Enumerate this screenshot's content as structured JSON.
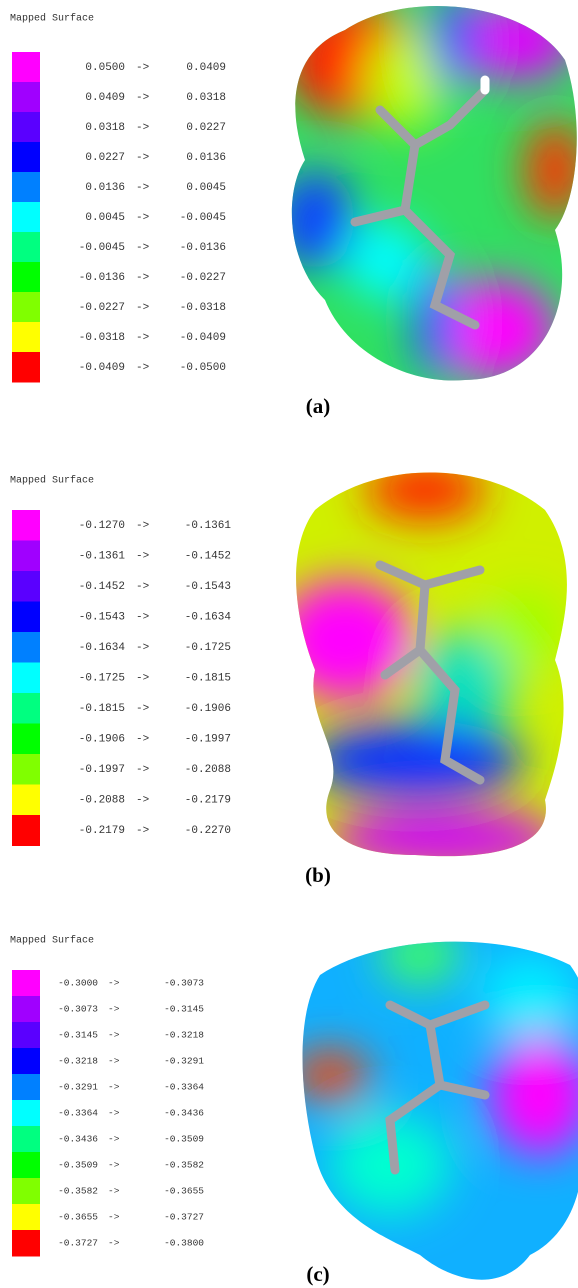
{
  "swatch_colors": [
    "#ff00ff",
    "#a000ff",
    "#5a00ff",
    "#0000ff",
    "#0080ff",
    "#00ffff",
    "#00ff80",
    "#00ff00",
    "#80ff00",
    "#ffff00",
    "#ff0000"
  ],
  "panels": [
    {
      "title": "Mapped Surface",
      "caption": "(a)",
      "rows": [
        {
          "from": "0.0500",
          "arrow": "->",
          "to": "0.0409"
        },
        {
          "from": "0.0409",
          "arrow": "->",
          "to": "0.0318"
        },
        {
          "from": "0.0318",
          "arrow": "->",
          "to": "0.0227"
        },
        {
          "from": "0.0227",
          "arrow": "->",
          "to": "0.0136"
        },
        {
          "from": "0.0136",
          "arrow": "->",
          "to": "0.0045"
        },
        {
          "from": "0.0045",
          "arrow": "->",
          "to": "-0.0045"
        },
        {
          "from": "-0.0045",
          "arrow": "->",
          "to": "-0.0136"
        },
        {
          "from": "-0.0136",
          "arrow": "->",
          "to": "-0.0227"
        },
        {
          "from": "-0.0227",
          "arrow": "->",
          "to": "-0.0318"
        },
        {
          "from": "-0.0318",
          "arrow": "->",
          "to": "-0.0409"
        },
        {
          "from": "-0.0409",
          "arrow": "->",
          "to": "-0.0500"
        }
      ]
    },
    {
      "title": "Mapped Surface",
      "caption": "(b)",
      "rows": [
        {
          "from": "-0.1270",
          "arrow": "->",
          "to": "-0.1361"
        },
        {
          "from": "-0.1361",
          "arrow": "->",
          "to": "-0.1452"
        },
        {
          "from": "-0.1452",
          "arrow": "->",
          "to": "-0.1543"
        },
        {
          "from": "-0.1543",
          "arrow": "->",
          "to": "-0.1634"
        },
        {
          "from": "-0.1634",
          "arrow": "->",
          "to": "-0.1725"
        },
        {
          "from": "-0.1725",
          "arrow": "->",
          "to": "-0.1815"
        },
        {
          "from": "-0.1815",
          "arrow": "->",
          "to": "-0.1906"
        },
        {
          "from": "-0.1906",
          "arrow": "->",
          "to": "-0.1997"
        },
        {
          "from": "-0.1997",
          "arrow": "->",
          "to": "-0.2088"
        },
        {
          "from": "-0.2088",
          "arrow": "->",
          "to": "-0.2179"
        },
        {
          "from": "-0.2179",
          "arrow": "->",
          "to": "-0.2270"
        }
      ]
    },
    {
      "title": "Mapped Surface",
      "caption": "(c)",
      "rows": [
        {
          "from": "-0.3000",
          "arrow": "->",
          "to": "-0.3073"
        },
        {
          "from": "-0.3073",
          "arrow": "->",
          "to": "-0.3145"
        },
        {
          "from": "-0.3145",
          "arrow": "->",
          "to": "-0.3218"
        },
        {
          "from": "-0.3218",
          "arrow": "->",
          "to": "-0.3291"
        },
        {
          "from": "-0.3291",
          "arrow": "->",
          "to": "-0.3364"
        },
        {
          "from": "-0.3364",
          "arrow": "->",
          "to": "-0.3436"
        },
        {
          "from": "-0.3436",
          "arrow": "->",
          "to": "-0.3509"
        },
        {
          "from": "-0.3509",
          "arrow": "->",
          "to": "-0.3582"
        },
        {
          "from": "-0.3582",
          "arrow": "->",
          "to": "-0.3655"
        },
        {
          "from": "-0.3655",
          "arrow": "->",
          "to": "-0.3727"
        },
        {
          "from": "-0.3727",
          "arrow": "->",
          "to": "-0.3800"
        }
      ]
    }
  ]
}
